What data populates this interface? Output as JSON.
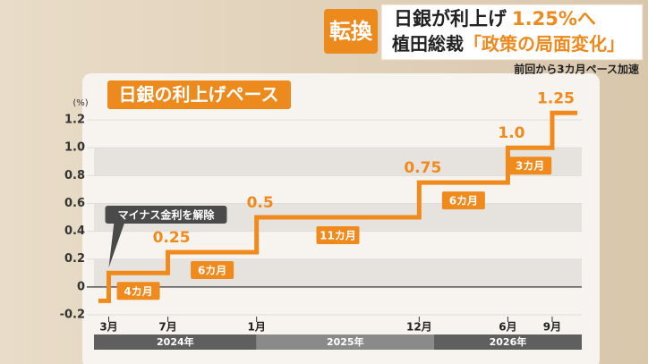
{
  "badge": "転換",
  "headline": {
    "line1": [
      "日銀が利上げ",
      "1.25%へ"
    ],
    "line2": [
      "植田総裁",
      "「政策の局面変化」"
    ]
  },
  "subheadline": "前回から3カ月ペース加速",
  "chart_data": {
    "type": "step",
    "title": "日銀の利上げペース",
    "y_unit": "(%)",
    "x": [
      2.3,
      3,
      7,
      13,
      24,
      30,
      33
    ],
    "values": [
      -0.1,
      0.1,
      0.25,
      0.5,
      0.75,
      1.0,
      1.25
    ],
    "value_labels": [
      null,
      null,
      "0.25",
      "0.5",
      "0.75",
      "1.0",
      "1.25"
    ],
    "intervals": [
      "4カ月",
      "6カ月",
      "11カ月",
      "6カ月",
      "3カ月"
    ],
    "callout": "マイナス金利を解除",
    "color": "#f08a1c",
    "xlim": [
      2,
      35
    ],
    "xticks": [
      {
        "value": 3,
        "label": "3月"
      },
      {
        "value": 7,
        "label": "7月"
      },
      {
        "value": 13,
        "label": "1月"
      },
      {
        "value": 24,
        "label": "12月"
      },
      {
        "value": 30,
        "label": "6月"
      },
      {
        "value": 33,
        "label": "9月"
      }
    ],
    "years": [
      "2024年",
      "2025年",
      "2026年"
    ],
    "ylim": [
      -0.2,
      1.3
    ],
    "yticks": [
      -0.2,
      0,
      0.2,
      0.4,
      0.6,
      {
        "value": 0.8,
        "label": "0.8"
      },
      {
        "value": 1,
        "label": "1.0"
      },
      1.2
    ],
    "grid": true
  }
}
